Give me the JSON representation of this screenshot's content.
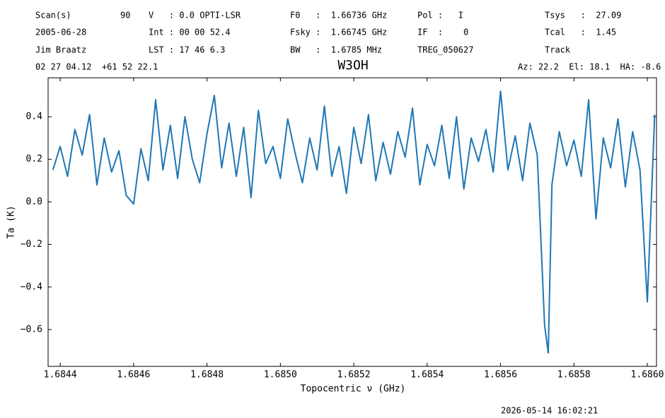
{
  "chart_data": {
    "type": "line",
    "title": "W3OH",
    "header": [
      "Scan(s)",
      "90",
      "V   : 0.0 OPTI-LSR",
      "F0   :  1.66736 GHz",
      "Pol :   I",
      "Tsys   :  27.09",
      "2005-06-28",
      "Int : 00 00 52.4",
      "Fsky :  1.66745 GHz",
      "IF  :    0",
      "Tcal   :  1.45",
      "Jim Braatz",
      "LST : 17 46 6.3",
      "BW   :  1.6785 MHz",
      "TREG_050627",
      "Track",
      "02 27 04.12  +61 52 22.1",
      "Az: 22.2  El: 18.1  HA: -8.6"
    ],
    "footer": "2026-05-14 16:02:21",
    "xlabel": "Topocentric ν (GHz)",
    "ylabel": "Ta (K)",
    "color": "#1f77b4",
    "x": [
      1.68438,
      1.6844,
      1.68442,
      1.68444,
      1.68446,
      1.68448,
      1.6845,
      1.68452,
      1.68454,
      1.68456,
      1.68458,
      1.6846,
      1.68462,
      1.68464,
      1.68466,
      1.68468,
      1.6847,
      1.68472,
      1.68474,
      1.68476,
      1.68478,
      1.6848,
      1.68482,
      1.68484,
      1.68486,
      1.68488,
      1.6849,
      1.68492,
      1.68494,
      1.68496,
      1.68498,
      1.685,
      1.68502,
      1.68504,
      1.68506,
      1.68508,
      1.6851,
      1.68512,
      1.68514,
      1.68516,
      1.68518,
      1.6852,
      1.68522,
      1.68524,
      1.68526,
      1.68528,
      1.6853,
      1.68532,
      1.68534,
      1.68536,
      1.68538,
      1.6854,
      1.68542,
      1.68544,
      1.68546,
      1.68548,
      1.6855,
      1.68552,
      1.68554,
      1.68556,
      1.68558,
      1.6856,
      1.68562,
      1.68564,
      1.68566,
      1.68568,
      1.6857,
      1.68572,
      1.68573,
      1.68574,
      1.68576,
      1.68578,
      1.6858,
      1.68582,
      1.68584,
      1.68586,
      1.68588,
      1.6859,
      1.68592,
      1.68594,
      1.68596,
      1.68598,
      1.686,
      1.68602
    ],
    "values": [
      0.15,
      0.26,
      0.12,
      0.34,
      0.22,
      0.41,
      0.08,
      0.3,
      0.14,
      0.24,
      0.03,
      -0.01,
      0.25,
      0.1,
      0.48,
      0.15,
      0.36,
      0.11,
      0.4,
      0.2,
      0.09,
      0.32,
      0.5,
      0.16,
      0.37,
      0.12,
      0.35,
      0.02,
      0.43,
      0.18,
      0.26,
      0.11,
      0.39,
      0.23,
      0.09,
      0.3,
      0.15,
      0.45,
      0.12,
      0.26,
      0.04,
      0.35,
      0.18,
      0.41,
      0.1,
      0.28,
      0.13,
      0.33,
      0.21,
      0.44,
      0.08,
      0.27,
      0.17,
      0.36,
      0.11,
      0.4,
      0.06,
      0.3,
      0.19,
      0.34,
      0.14,
      0.52,
      0.15,
      0.31,
      0.1,
      0.37,
      0.22,
      -0.58,
      -0.71,
      0.08,
      0.33,
      0.17,
      0.29,
      0.12,
      0.48,
      -0.08,
      0.3,
      0.16,
      0.39,
      0.07,
      0.33,
      0.15,
      -0.47,
      0.41
    ],
    "xlim": [
      1.684367,
      1.686025
    ],
    "ylim": [
      -0.773,
      0.583
    ],
    "xticks": [
      1.6844,
      1.6846,
      1.6848,
      {
        "value": 1.685,
        "label": "1.6850"
      },
      1.6852,
      1.6854,
      1.6856,
      1.6858,
      {
        "value": 1.686,
        "label": "1.6860"
      }
    ],
    "yticks": [
      {
        "value": -0.6,
        "label": "−0.6"
      },
      {
        "value": -0.4,
        "label": "−0.4"
      },
      {
        "value": -0.2,
        "label": "−0.2"
      },
      {
        "value": 0,
        "label": "0.0"
      },
      0.2,
      0.4
    ],
    "grid": false
  }
}
